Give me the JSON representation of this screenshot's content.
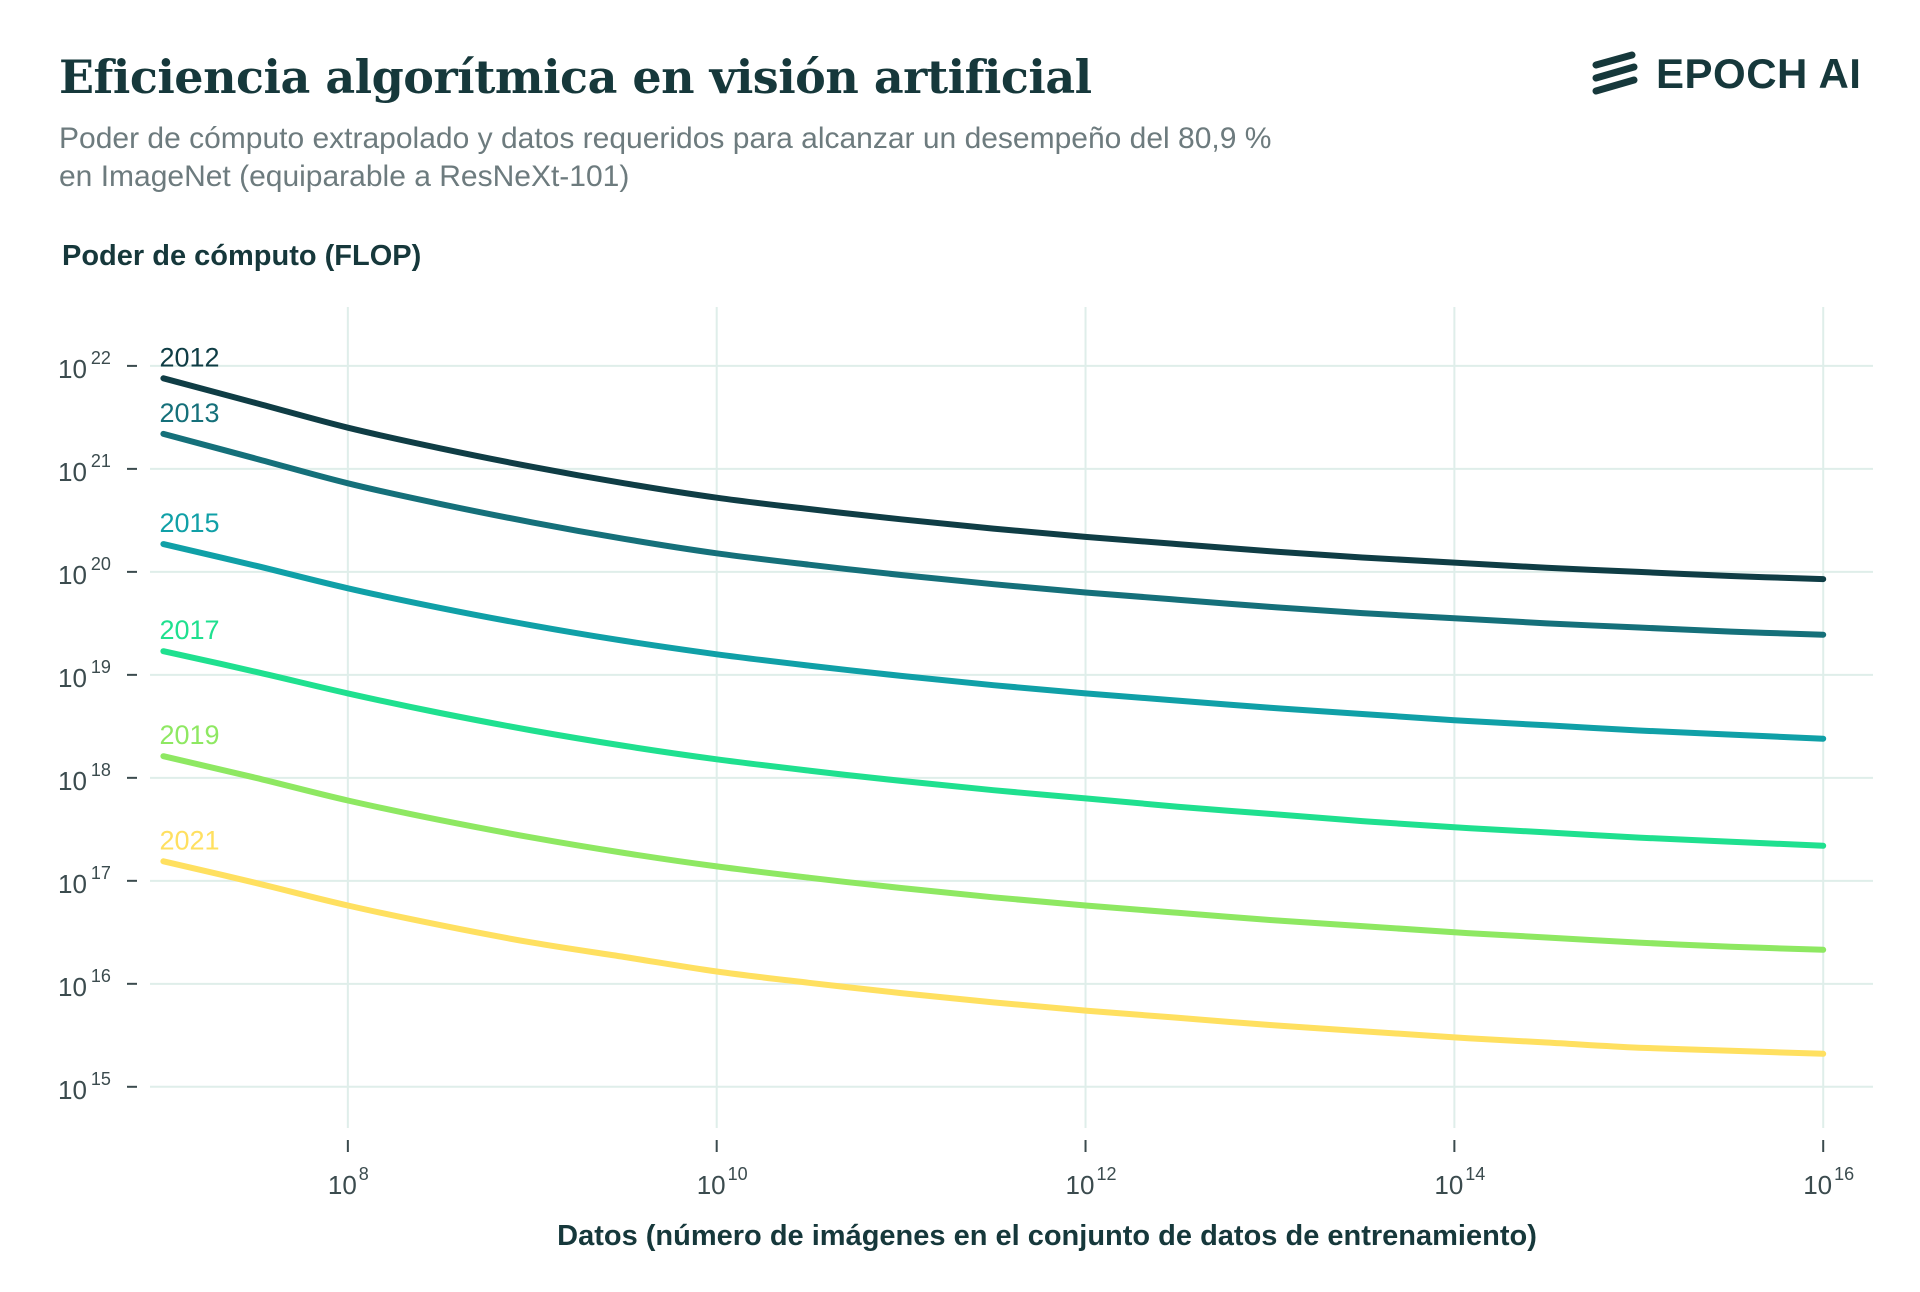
{
  "header": {
    "title": "Eficiencia algorítmica en visión artificial",
    "subtitle_line1": "Poder de cómputo extrapolado y datos requeridos para alcanzar un desempeño del 80,9 %",
    "subtitle_line2": "en ImageNet (equiparable a ResNeXt-101)"
  },
  "logo": {
    "text": "EPOCH AI",
    "icon": "epoch-logo-stripes-icon"
  },
  "colors": {
    "grid": "#dfeeea",
    "axis_text": "#3b4b4e",
    "title": "#16383b"
  },
  "chart_data": {
    "type": "line",
    "title": "Eficiencia algorítmica en visión artificial",
    "ylabel": "Poder de cómputo (FLOP)",
    "xlabel": "Datos (número de imágenes en el conjunto de datos de entrenamiento)",
    "x_scale": "log",
    "y_scale": "log",
    "xlim_log10": [
      6.9,
      16.27
    ],
    "ylim_log10": [
      14.6,
      22.3
    ],
    "x_ticks": [
      {
        "base": "10",
        "exp": "8",
        "log": 8
      },
      {
        "base": "10",
        "exp": "10",
        "log": 10
      },
      {
        "base": "10",
        "exp": "12",
        "log": 12
      },
      {
        "base": "10",
        "exp": "14",
        "log": 14
      },
      {
        "base": "10",
        "exp": "16",
        "log": 16
      }
    ],
    "y_ticks": [
      {
        "base": "10",
        "exp": "22",
        "log": 22
      },
      {
        "base": "10",
        "exp": "21",
        "log": 21
      },
      {
        "base": "10",
        "exp": "20",
        "log": 20
      },
      {
        "base": "10",
        "exp": "19",
        "log": 19
      },
      {
        "base": "10",
        "exp": "18",
        "log": 18
      },
      {
        "base": "10",
        "exp": "17",
        "log": 17
      },
      {
        "base": "10",
        "exp": "16",
        "log": 16
      },
      {
        "base": "10",
        "exp": "15",
        "log": 15
      }
    ],
    "grid": true,
    "x_log10": [
      7,
      7.5,
      8,
      8.5,
      9,
      9.5,
      10,
      10.5,
      11,
      11.5,
      12,
      12.5,
      13,
      13.5,
      14,
      14.5,
      15,
      15.5,
      16
    ],
    "series": [
      {
        "name": "2012",
        "color": "#0f3d45",
        "y_log10": [
          21.88,
          21.64,
          21.4,
          21.2,
          21.02,
          20.86,
          20.72,
          20.61,
          20.51,
          20.42,
          20.34,
          20.27,
          20.2,
          20.14,
          20.09,
          20.04,
          20.0,
          19.96,
          19.93
        ]
      },
      {
        "name": "2013",
        "color": "#15707a",
        "y_log10": [
          21.34,
          21.1,
          20.86,
          20.66,
          20.48,
          20.32,
          20.18,
          20.07,
          19.97,
          19.88,
          19.8,
          19.73,
          19.66,
          19.6,
          19.55,
          19.5,
          19.46,
          19.42,
          19.39
        ]
      },
      {
        "name": "2015",
        "color": "#10a0a7",
        "y_log10": [
          20.27,
          20.06,
          19.84,
          19.65,
          19.48,
          19.33,
          19.2,
          19.09,
          18.99,
          18.9,
          18.82,
          18.75,
          18.68,
          18.62,
          18.56,
          18.51,
          18.46,
          18.42,
          18.38
        ]
      },
      {
        "name": "2017",
        "color": "#1fe08f",
        "y_log10": [
          19.23,
          19.03,
          18.82,
          18.63,
          18.46,
          18.31,
          18.18,
          18.07,
          17.97,
          17.88,
          17.8,
          17.72,
          17.65,
          17.58,
          17.52,
          17.47,
          17.42,
          17.38,
          17.34
        ]
      },
      {
        "name": "2019",
        "color": "#8ee862",
        "y_log10": [
          18.21,
          18.0,
          17.78,
          17.59,
          17.42,
          17.27,
          17.14,
          17.03,
          16.93,
          16.84,
          16.76,
          16.69,
          16.62,
          16.56,
          16.5,
          16.45,
          16.4,
          16.36,
          16.33
        ]
      },
      {
        "name": "2021",
        "color": "#ffe060",
        "y_log10": [
          17.19,
          16.98,
          16.76,
          16.57,
          16.4,
          16.26,
          16.12,
          16.01,
          15.91,
          15.82,
          15.74,
          15.67,
          15.6,
          15.54,
          15.48,
          15.43,
          15.38,
          15.35,
          15.32
        ]
      }
    ]
  }
}
